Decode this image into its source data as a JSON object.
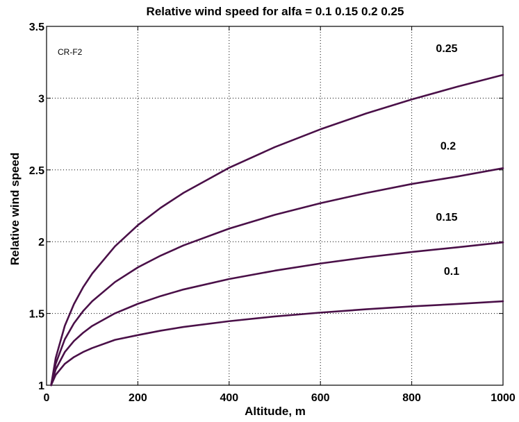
{
  "chart_data": {
    "type": "line",
    "title": "Relative wind speed for alfa = 0.1  0.15  0.2  0.25",
    "xlabel": "Altitude, m",
    "ylabel": "Relative wind speed",
    "xlim": [
      0,
      1000
    ],
    "ylim": [
      1,
      3.5
    ],
    "xticks": [
      0,
      200,
      400,
      600,
      800,
      1000
    ],
    "yticks": [
      1,
      1.5,
      2,
      2.5,
      3,
      3.5
    ],
    "xtick_labels": [
      "0",
      "200",
      "400",
      "600",
      "800",
      "1000"
    ],
    "ytick_labels": [
      "1",
      "1.5",
      "2",
      "2.5",
      "3",
      "3.5"
    ],
    "grid": true,
    "annotation": "CR-F2",
    "line_color": "#4a1048",
    "x": [
      10,
      20,
      40,
      60,
      80,
      100,
      150,
      200,
      250,
      300,
      400,
      500,
      600,
      700,
      800,
      900,
      1000
    ],
    "series": [
      {
        "label": "0.1",
        "values": [
          1.0,
          1.072,
          1.149,
          1.196,
          1.231,
          1.259,
          1.316,
          1.349,
          1.38,
          1.406,
          1.446,
          1.479,
          1.506,
          1.529,
          1.549,
          1.566,
          1.585
        ]
      },
      {
        "label": "0.15",
        "values": [
          1.0,
          1.11,
          1.231,
          1.308,
          1.365,
          1.413,
          1.501,
          1.567,
          1.621,
          1.667,
          1.74,
          1.798,
          1.848,
          1.891,
          1.928,
          1.961,
          1.995
        ]
      },
      {
        "label": "0.2",
        "values": [
          1.0,
          1.149,
          1.32,
          1.431,
          1.516,
          1.585,
          1.719,
          1.821,
          1.903,
          1.974,
          2.091,
          2.187,
          2.268,
          2.339,
          2.402,
          2.454,
          2.512
        ]
      },
      {
        "label": "0.25",
        "values": [
          1.0,
          1.189,
          1.414,
          1.565,
          1.682,
          1.778,
          1.968,
          2.115,
          2.236,
          2.34,
          2.515,
          2.659,
          2.783,
          2.893,
          2.991,
          3.08,
          3.162
        ]
      }
    ]
  }
}
